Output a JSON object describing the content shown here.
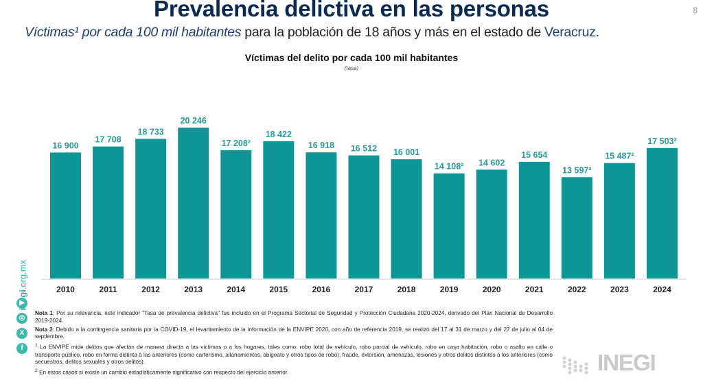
{
  "header": {
    "title": "Prevalencia delictiva en las personas",
    "subtitle_italic": "Víctimas¹ por cada 100 mil habitantes",
    "subtitle_rest": " para la población de 18 años y más en el estado de ",
    "subtitle_state": "Veracruz",
    "subtitle_end": ".",
    "page_number": "8"
  },
  "chart_data": {
    "type": "bar",
    "title": "Víctimas del delito por cada 100 mil habitantes",
    "subtitle": "(tasa)",
    "xlabel": "",
    "ylabel": "",
    "ylim": [
      0,
      20246
    ],
    "grid": false,
    "bar_color": "#0e9696",
    "label_color": "#2a9a9a",
    "categories": [
      "2010",
      "2011",
      "2012",
      "2013",
      "2014",
      "2015",
      "2016",
      "2017",
      "2018",
      "2019",
      "2020",
      "2021",
      "2022",
      "2023",
      "2024"
    ],
    "values": [
      16900,
      17708,
      18733,
      20246,
      17208,
      18422,
      16918,
      16512,
      16001,
      14108,
      14602,
      15654,
      13597,
      15487,
      17503
    ],
    "labels": [
      "16 900",
      "17 708",
      "18 733",
      "20 246",
      "17 208²",
      "18 422",
      "16 918",
      "16 512",
      "16 001",
      "14 108²",
      "14 602",
      "15 654",
      "13 597²",
      "15 487²",
      "17 503²"
    ]
  },
  "notes": {
    "nota1_label": "Nota 1",
    "nota1_text": ": Por su relevancia, este indicador \"Tasa de prevalencia delictiva\" fue incluido en el Programa Sectorial de Seguridad y Protección Ciudadana 2020-2024, derivado del Plan Nacional de Desarrollo 2019-2024.",
    "nota2_label": "Nota 2",
    "nota2_text": ": Debido a la contingencia sanitaria por la COVID-19, el levantamiento de la información de la ENVIPE 2020, con año de referencia 2019, se realizó del 17 al 31 de marzo y del 27 de julio al 04 de septiembre.",
    "fn1_mark": "1",
    "fn1_text": " La ENVIPE mide delitos que afectan de manera directa a las víctimas o a los hogares, tales como: robo total de vehículo, robo parcial de vehículo, robo en casa habitación, robo o asalto en calle o transporte público, robo en forma distinta a las anteriores (como carterismo, allanamientos, abigeato y otros tipos de robo), fraude, extorsión, amenazas, lesiones y otros delitos distintos a los anteriores (como secuestros, delitos sexuales y otros delitos).",
    "fn2_mark": "2",
    "fn2_text": " En estos casos sí existe un cambio estadísticamente significativo con respecto del ejercicio anterior."
  },
  "sidebar": {
    "url_bold": "inegi",
    "url_rest": ".org.mx",
    "social": [
      {
        "icon": "youtube-icon",
        "glyph": "▶"
      },
      {
        "icon": "instagram-icon",
        "glyph": "◎"
      },
      {
        "icon": "x-icon",
        "glyph": "X"
      },
      {
        "icon": "facebook-icon",
        "glyph": "f"
      }
    ]
  },
  "logo": {
    "text": "INEGI"
  }
}
